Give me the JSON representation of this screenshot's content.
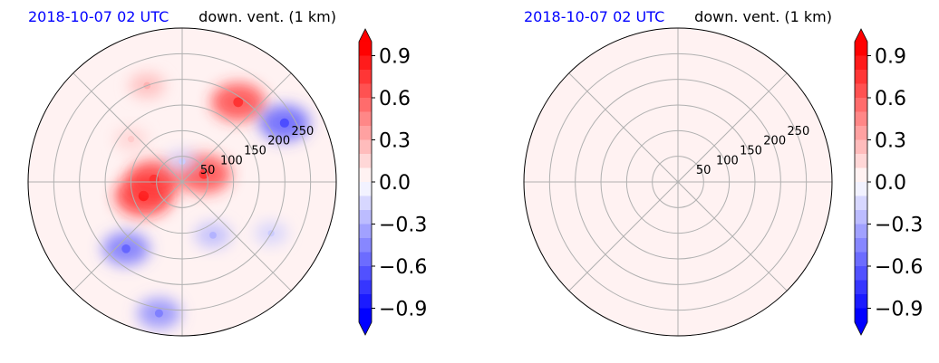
{
  "chart_data": [
    {
      "type": "heatmap",
      "projection": "polar",
      "title_left": "2018-10-07 02 UTC",
      "title_right": "down. vent. (1 km)",
      "title_left_color": "#0000ff",
      "radial_ticks": [
        "50",
        "100",
        "150",
        "200",
        "250"
      ],
      "radial_values": [
        50,
        100,
        150,
        200,
        250
      ],
      "r_max": 300,
      "angular_grid_deg": [
        0,
        45,
        90,
        135,
        180,
        225,
        270,
        315
      ],
      "grid": true,
      "field_description": "mixed red/blue contours; red clusters near center, blue bands lower-left and upper-right",
      "blobs": [
        {
          "angle_deg": 200,
          "r": 80,
          "value": 0.9
        },
        {
          "angle_deg": 175,
          "r": 55,
          "value": 0.8
        },
        {
          "angle_deg": 20,
          "r": 45,
          "value": 0.8
        },
        {
          "angle_deg": 55,
          "r": 190,
          "value": 0.8
        },
        {
          "angle_deg": 230,
          "r": 170,
          "value": -0.6
        },
        {
          "angle_deg": 30,
          "r": 230,
          "value": -0.7
        },
        {
          "angle_deg": 110,
          "r": 200,
          "value": 0.3
        },
        {
          "angle_deg": 140,
          "r": 130,
          "value": 0.2
        },
        {
          "angle_deg": 300,
          "r": 120,
          "value": -0.3
        },
        {
          "angle_deg": 260,
          "r": 260,
          "value": -0.5
        },
        {
          "angle_deg": 330,
          "r": 200,
          "value": -0.2
        },
        {
          "angle_deg": 90,
          "r": 40,
          "value": -0.2
        }
      ],
      "colorbar": {
        "ticks": [
          "0.9",
          "0.6",
          "0.3",
          "0.0",
          "−0.3",
          "−0.6",
          "−0.9"
        ],
        "tick_values": [
          0.9,
          0.6,
          0.3,
          0.0,
          -0.3,
          -0.6,
          -0.9
        ],
        "range": [
          -1.0,
          1.0
        ],
        "levels": 20,
        "extend": "both",
        "colormap": "bwr"
      }
    },
    {
      "type": "heatmap",
      "projection": "polar",
      "title_left": "2018-10-07 02 UTC",
      "title_right": "down. vent. (1 km)",
      "title_left_color": "#0000ff",
      "radial_ticks": [
        "50",
        "100",
        "150",
        "200",
        "250"
      ],
      "radial_values": [
        50,
        100,
        150,
        200,
        250
      ],
      "r_max": 300,
      "angular_grid_deg": [
        0,
        45,
        90,
        135,
        180,
        225,
        270,
        315
      ],
      "grid": true,
      "field_description": "uniform near-zero positive value",
      "uniform_value": 0.03,
      "colorbar": {
        "ticks": [
          "0.9",
          "0.6",
          "0.3",
          "0.0",
          "−0.3",
          "−0.6",
          "−0.9"
        ],
        "tick_values": [
          0.9,
          0.6,
          0.3,
          0.0,
          -0.3,
          -0.6,
          -0.9
        ],
        "range": [
          -1.0,
          1.0
        ],
        "levels": 20,
        "extend": "both",
        "colormap": "bwr"
      }
    }
  ]
}
